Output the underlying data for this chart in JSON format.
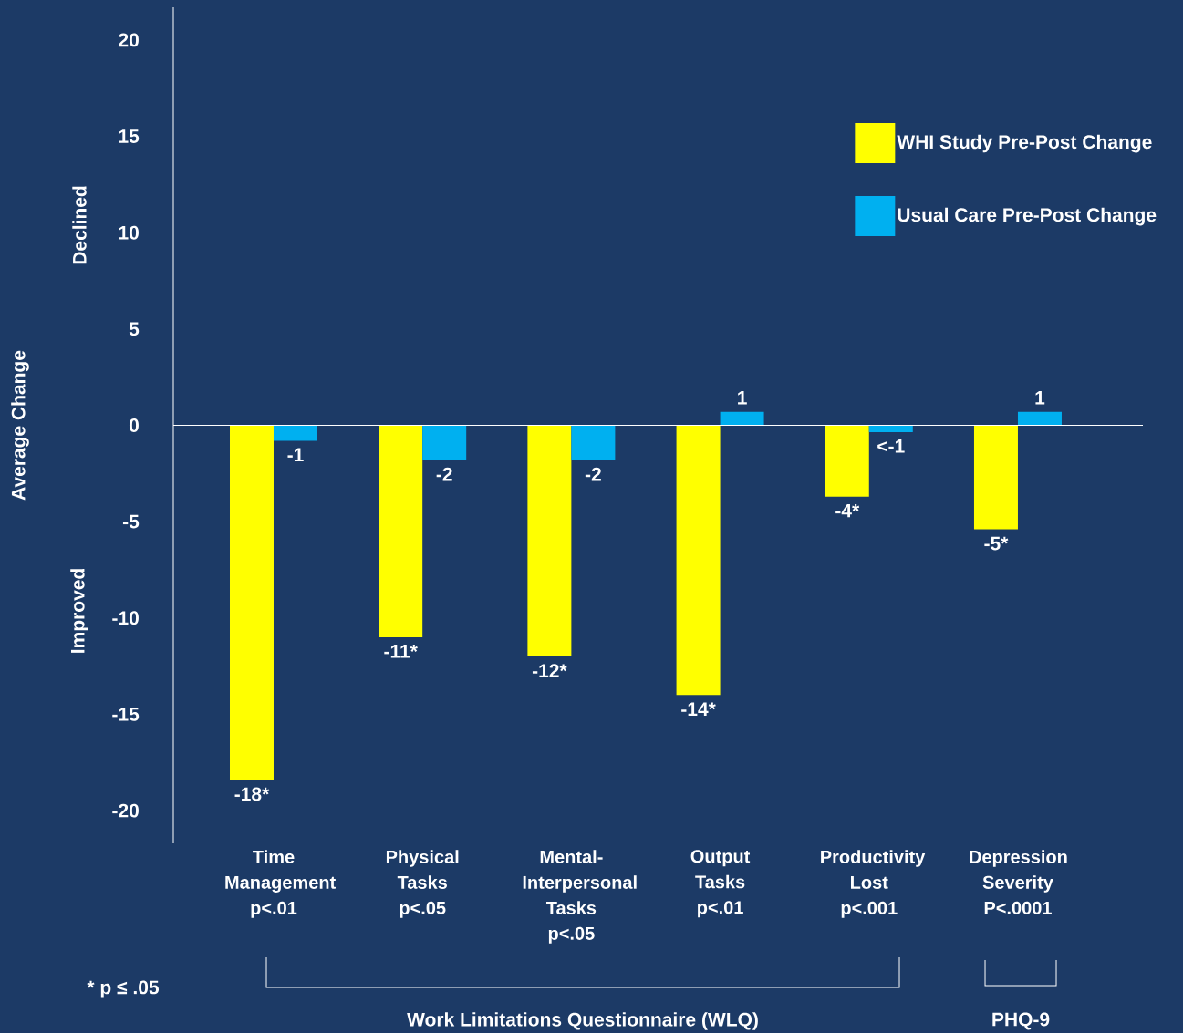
{
  "chart_data": {
    "type": "bar",
    "categories": [
      "Time Management p<.01",
      "Physical Tasks p<.05",
      "Mental-Interpersonal Tasks p<.05",
      "Output Tasks p<.01",
      "Productivity Lost p<.001",
      "Depression Severity P<.0001"
    ],
    "series": [
      {
        "name": "WHI Study Pre-Post Change",
        "color": "#ffff00",
        "values": [
          -18.4,
          -11,
          -12,
          -14,
          -3.7,
          -5.4
        ],
        "value_labels": [
          "-18*",
          "-11*",
          "-12*",
          "-14*",
          "-4*",
          "-5*"
        ]
      },
      {
        "name": "Usual Care Pre-Post Change",
        "color": "#00b0f0",
        "values": [
          -0.8,
          -1.8,
          -1.8,
          0.7,
          -0.35,
          0.7
        ],
        "value_labels": [
          "-1",
          "-2",
          "-2",
          "1",
          "<-1",
          "1"
        ]
      }
    ],
    "ylabel": "Average Change",
    "ylim": [
      -21.7,
      21.7
    ],
    "yticks": [
      -20,
      -15,
      -10,
      -5,
      0,
      5,
      10,
      15,
      20
    ],
    "ref_lines": [
      {
        "axis": "y",
        "value": 0,
        "color": "#ffffff"
      }
    ],
    "legend": "top right",
    "annotations": [
      "Declined",
      "Improved",
      "* p ≤ .05",
      "Work Limitations Questionnaire (WLQ)",
      "PHQ-9"
    ]
  }
}
